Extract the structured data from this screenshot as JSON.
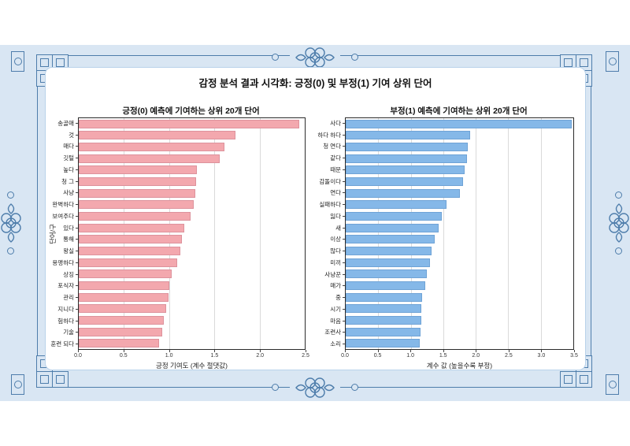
{
  "page": {
    "title": "감정 분석 결과 시각화: 긍정(0) 및 부정(1) 기여 상위 단어"
  },
  "decor": {
    "panel_background": "#d9e6f3",
    "ornament_line_color": "#4e7dab",
    "ornaments": [
      "corner-squares-icon",
      "endless-knot-icon",
      "circle-dot-icon",
      "box-circle-icon"
    ]
  },
  "chart_data": [
    {
      "type": "bar",
      "orientation": "horizontal",
      "title": "긍정(0) 예측에 기여하는 상위 20개 단어",
      "xlabel": "긍정 기여도 (계수 절댓값)",
      "ylabel": "단어/구",
      "xlim": [
        0,
        2.5
      ],
      "xticks": [
        0,
        0.5,
        1.0,
        1.5,
        2.0,
        2.5
      ],
      "grid": true,
      "bar_color": "#f3a8ae",
      "bar_edge_color": "#dd929c",
      "categories": [
        "송골매",
        "것",
        "매다",
        "깃털",
        "높다",
        "청 그",
        "사냥",
        "완벽하다",
        "보여주다",
        "있다",
        "통해",
        "왕실",
        "용맹하다",
        "상징",
        "포식자",
        "관리",
        "지니다",
        "험하다",
        "기술",
        "훈련 되다"
      ],
      "values": [
        2.44,
        1.73,
        1.61,
        1.56,
        1.31,
        1.3,
        1.29,
        1.27,
        1.24,
        1.17,
        1.14,
        1.12,
        1.09,
        1.03,
        1.0,
        0.99,
        0.97,
        0.94,
        0.92,
        0.89
      ]
    },
    {
      "type": "bar",
      "orientation": "horizontal",
      "title": "부정(1) 예측에 기여하는 상위 20개 단어",
      "xlabel": "계수 값 (높을수록 부정)",
      "ylabel": "",
      "xlim": [
        0,
        3.5
      ],
      "xticks": [
        0,
        0.5,
        1.0,
        1.5,
        2.0,
        2.5,
        3.0,
        3.5
      ],
      "grid": true,
      "bar_color": "#85b8e8",
      "bar_edge_color": "#6fa3d6",
      "categories": [
        "사다",
        "하다 하다",
        "청 연다",
        "같다",
        "때문",
        "감돌이다",
        "연다",
        "실패하다",
        "잃다",
        "새",
        "이상",
        "많다",
        "미끼",
        "사냥꾼",
        "매가",
        "중",
        "시기",
        "마음",
        "조련사",
        "소리"
      ],
      "values": [
        3.48,
        1.91,
        1.88,
        1.86,
        1.83,
        1.8,
        1.76,
        1.55,
        1.48,
        1.43,
        1.37,
        1.32,
        1.3,
        1.25,
        1.22,
        1.18,
        1.16,
        1.16,
        1.15,
        1.14
      ]
    }
  ]
}
